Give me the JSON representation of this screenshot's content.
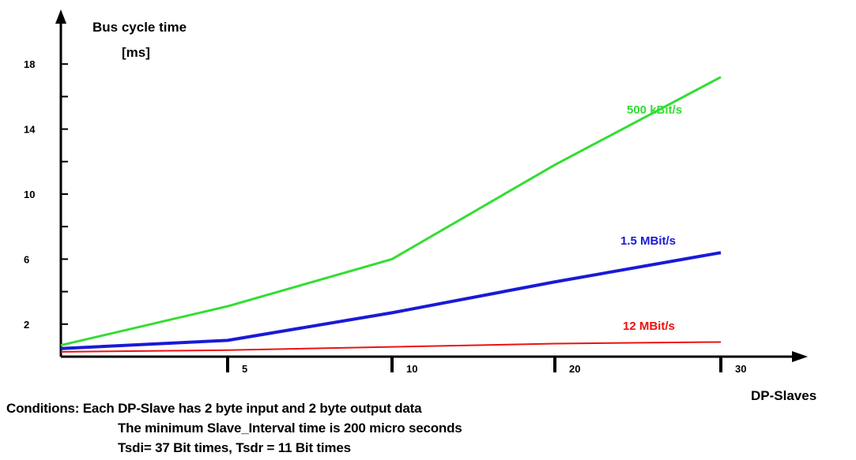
{
  "chart_data": {
    "type": "line",
    "ylabel_line1": "Bus cycle time",
    "ylabel_line2": "[ms]",
    "xlabel": "DP-Slaves",
    "y_ticks": [
      2,
      6,
      10,
      14,
      18
    ],
    "y_minor_ticks": [
      4,
      8,
      12,
      16
    ],
    "x_tick_labels": [
      "5",
      "10",
      "20",
      "30"
    ],
    "series": [
      {
        "name": "500 kBit/s",
        "color": "#33dd33",
        "points": [
          {
            "x": "0",
            "y": 0.7
          },
          {
            "x": "5",
            "y": 3.1
          },
          {
            "x": "10",
            "y": 6.0
          },
          {
            "x": "20",
            "y": 11.8
          },
          {
            "x": "30",
            "y": 17.2
          }
        ]
      },
      {
        "name": "1.5 MBit/s",
        "color": "#1a1ad6",
        "points": [
          {
            "x": "0",
            "y": 0.5
          },
          {
            "x": "5",
            "y": 1.0
          },
          {
            "x": "10",
            "y": 2.7
          },
          {
            "x": "20",
            "y": 4.6
          },
          {
            "x": "30",
            "y": 6.4
          }
        ]
      },
      {
        "name": "12 MBit/s",
        "color": "#ee1111",
        "points": [
          {
            "x": "0",
            "y": 0.3
          },
          {
            "x": "5",
            "y": 0.4
          },
          {
            "x": "10",
            "y": 0.6
          },
          {
            "x": "20",
            "y": 0.8
          },
          {
            "x": "30",
            "y": 0.9
          }
        ]
      }
    ]
  },
  "conditions": {
    "line1": "Conditions: Each DP-Slave has 2 byte input and 2 byte output data",
    "line2": "The minimum Slave_Interval time is 200 micro seconds",
    "line3": "Tsdi= 37 Bit times, Tsdr = 11 Bit times"
  }
}
